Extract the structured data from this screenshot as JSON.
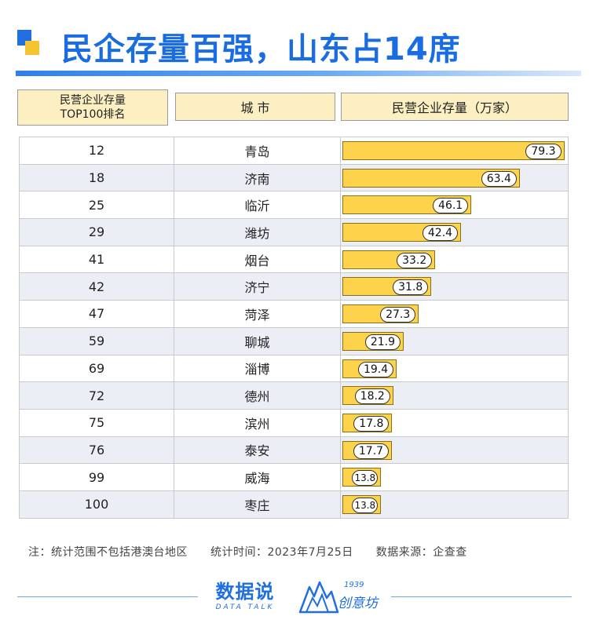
{
  "header": {
    "title": "民企存量百强，山东占14席"
  },
  "columns": {
    "rank_line1": "民营企业存量",
    "rank_line2": "TOP100排名",
    "city": "城 市",
    "store": "民营企业存量（万家）"
  },
  "chart_data": {
    "type": "bar",
    "orientation": "horizontal",
    "title": "民企存量百强，山东占14席",
    "xlabel": "民营企业存量（万家）",
    "categories": [
      "青岛",
      "济南",
      "临沂",
      "潍坊",
      "烟台",
      "济宁",
      "菏泽",
      "聊城",
      "淄博",
      "德州",
      "滨州",
      "泰安",
      "威海",
      "枣庄"
    ],
    "ranks": [
      "12",
      "18",
      "25",
      "29",
      "41",
      "42",
      "47",
      "59",
      "69",
      "72",
      "75",
      "76",
      "99",
      "100"
    ],
    "values": [
      79.3,
      63.4,
      46.1,
      42.4,
      33.2,
      31.8,
      27.3,
      21.9,
      19.4,
      18.2,
      17.8,
      17.7,
      13.8,
      13.8
    ],
    "xlim": [
      0,
      80
    ],
    "bar_color": "#fcd34b",
    "grid": false
  },
  "footer": {
    "note_scope": "注：统计范围不包括港澳台地区",
    "note_time": "统计时间：2023年7月25日",
    "note_source": "数据来源：企查查",
    "brand1_main": "数据说",
    "brand1_sub": "DATA TALK",
    "brand2_year": "1939",
    "brand2_name": "创意坊"
  },
  "colors": {
    "accent": "#1a6ce3",
    "header_box": "#fcefc2",
    "row_alt": "#eceef5"
  }
}
